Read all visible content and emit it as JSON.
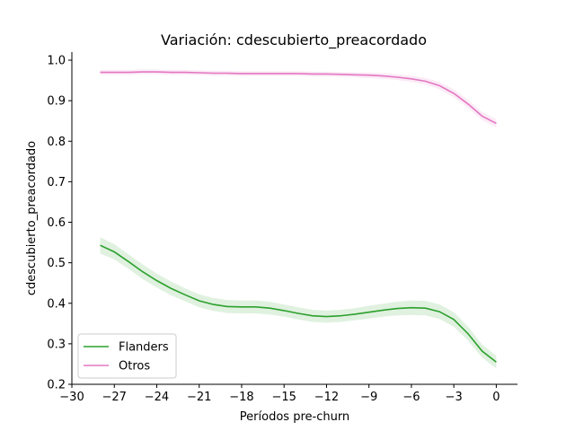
{
  "chart_data": {
    "type": "line",
    "title": "Variación: cdescubierto_preacordado",
    "xlabel": "Períodos pre-churn",
    "ylabel": "cdescubierto_preacordado",
    "xlim": [
      -30,
      1.5
    ],
    "ylim": [
      0.2,
      1.02
    ],
    "xticks": [
      -30,
      -27,
      -24,
      -21,
      -18,
      -15,
      -12,
      -9,
      -6,
      -3,
      0
    ],
    "xtick_labels": [
      "−30",
      "−27",
      "−24",
      "−21",
      "−18",
      "−15",
      "−12",
      "−9",
      "−6",
      "−3",
      "0"
    ],
    "yticks": [
      0.2,
      0.3,
      0.4,
      0.5,
      0.6,
      0.7,
      0.8,
      0.9,
      1.0
    ],
    "ytick_labels": [
      "0.2",
      "0.3",
      "0.4",
      "0.5",
      "0.6",
      "0.7",
      "0.8",
      "0.9",
      "1.0"
    ],
    "grid": false,
    "legend_position": "lower-left",
    "x": [
      -28,
      -27,
      -26,
      -25,
      -24,
      -23,
      -22,
      -21,
      -20,
      -19,
      -18,
      -17,
      -16,
      -15,
      -14,
      -13,
      -12,
      -11,
      -10,
      -9,
      -8,
      -7,
      -6,
      -5,
      -4,
      -3,
      -2,
      -1,
      0
    ],
    "series": [
      {
        "name": "Flanders",
        "color": "#2ca02c",
        "values": [
          0.543,
          0.527,
          0.503,
          0.478,
          0.456,
          0.437,
          0.421,
          0.406,
          0.397,
          0.392,
          0.391,
          0.391,
          0.388,
          0.382,
          0.375,
          0.369,
          0.367,
          0.369,
          0.373,
          0.378,
          0.383,
          0.387,
          0.389,
          0.388,
          0.379,
          0.36,
          0.325,
          0.282,
          0.255
        ],
        "ci_half_width": [
          0.02,
          0.019,
          0.018,
          0.018,
          0.017,
          0.017,
          0.016,
          0.016,
          0.016,
          0.016,
          0.016,
          0.016,
          0.016,
          0.015,
          0.015,
          0.015,
          0.015,
          0.015,
          0.015,
          0.016,
          0.016,
          0.017,
          0.018,
          0.018,
          0.018,
          0.018,
          0.017,
          0.016,
          0.016
        ]
      },
      {
        "name": "Otros",
        "color": "#e377c2",
        "values": [
          0.97,
          0.97,
          0.97,
          0.971,
          0.971,
          0.97,
          0.97,
          0.969,
          0.968,
          0.968,
          0.967,
          0.967,
          0.967,
          0.967,
          0.967,
          0.966,
          0.966,
          0.965,
          0.964,
          0.963,
          0.961,
          0.958,
          0.954,
          0.948,
          0.937,
          0.918,
          0.892,
          0.862,
          0.844
        ],
        "ci_half_width": [
          0.006,
          0.006,
          0.006,
          0.006,
          0.006,
          0.006,
          0.006,
          0.006,
          0.006,
          0.006,
          0.006,
          0.006,
          0.006,
          0.006,
          0.006,
          0.006,
          0.006,
          0.006,
          0.006,
          0.007,
          0.007,
          0.007,
          0.008,
          0.008,
          0.009,
          0.01,
          0.01,
          0.01,
          0.01
        ]
      }
    ]
  }
}
